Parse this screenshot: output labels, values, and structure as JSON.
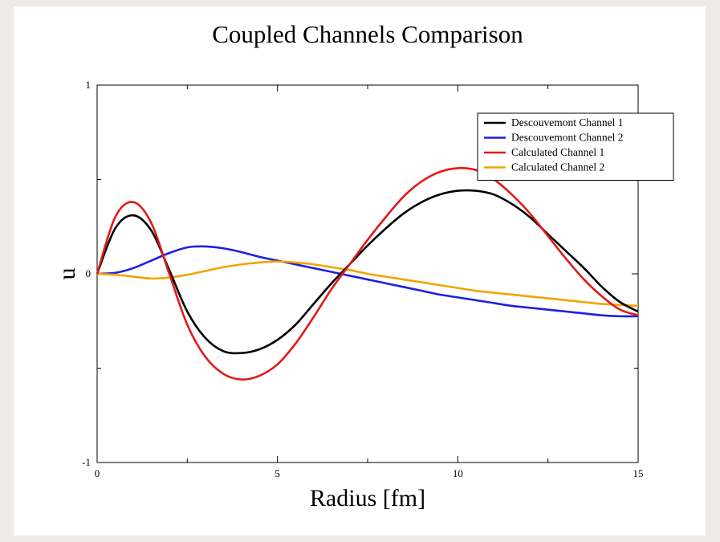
{
  "chart_data": {
    "type": "line",
    "title": "Coupled Channels Comparison",
    "xlabel": "Radius [fm]",
    "ylabel": "u",
    "xlim": [
      0,
      15
    ],
    "ylim": [
      -1,
      1
    ],
    "x_ticks": [
      "0",
      "5",
      "10",
      "15"
    ],
    "y_ticks": [
      "-1",
      "0",
      "1"
    ],
    "grid": false,
    "legend_position": "top-right",
    "series": [
      {
        "name": "Descouvemont Channel 1",
        "color": "#000000",
        "x": [
          0,
          0.5,
          1.0,
          1.5,
          2.0,
          2.5,
          3.0,
          3.5,
          4.0,
          4.5,
          5.0,
          5.5,
          6.0,
          6.5,
          7.0,
          7.5,
          8.0,
          8.5,
          9.0,
          9.5,
          10.0,
          10.5,
          11.0,
          11.5,
          12.0,
          12.5,
          13.0,
          13.5,
          14.0,
          14.5,
          15.0
        ],
        "y": [
          0,
          0.24,
          0.31,
          0.23,
          0.02,
          -0.2,
          -0.34,
          -0.41,
          -0.42,
          -0.4,
          -0.35,
          -0.27,
          -0.16,
          -0.05,
          0.05,
          0.15,
          0.24,
          0.32,
          0.38,
          0.42,
          0.44,
          0.44,
          0.42,
          0.37,
          0.3,
          0.21,
          0.12,
          0.03,
          -0.07,
          -0.15,
          -0.2
        ]
      },
      {
        "name": "Descouvemont Channel 2",
        "color": "#1f1fe0",
        "x": [
          0,
          0.5,
          1.0,
          1.5,
          2.0,
          2.5,
          3.0,
          3.5,
          4.0,
          4.5,
          5.0,
          5.5,
          6.0,
          6.5,
          7.0,
          7.5,
          8.0,
          8.5,
          9.0,
          9.5,
          10.0,
          10.5,
          11.0,
          11.5,
          12.0,
          12.5,
          13.0,
          13.5,
          14.0,
          14.5,
          15.0
        ],
        "y": [
          0,
          0.005,
          0.03,
          0.07,
          0.11,
          0.14,
          0.145,
          0.135,
          0.115,
          0.09,
          0.07,
          0.05,
          0.03,
          0.01,
          -0.01,
          -0.03,
          -0.05,
          -0.07,
          -0.09,
          -0.11,
          -0.125,
          -0.14,
          -0.155,
          -0.17,
          -0.18,
          -0.19,
          -0.2,
          -0.21,
          -0.22,
          -0.225,
          -0.225
        ]
      },
      {
        "name": "Calculated Channel 1",
        "color": "#e01a1a",
        "x": [
          0,
          0.5,
          1.0,
          1.5,
          2.0,
          2.5,
          3.0,
          3.5,
          4.0,
          4.5,
          5.0,
          5.5,
          6.0,
          6.5,
          7.0,
          7.5,
          8.0,
          8.5,
          9.0,
          9.5,
          10.0,
          10.5,
          11.0,
          11.5,
          12.0,
          12.5,
          13.0,
          13.5,
          14.0,
          14.5,
          15.0
        ],
        "y": [
          0,
          0.3,
          0.38,
          0.27,
          0.0,
          -0.27,
          -0.44,
          -0.53,
          -0.56,
          -0.54,
          -0.48,
          -0.37,
          -0.23,
          -0.08,
          0.05,
          0.18,
          0.3,
          0.41,
          0.49,
          0.54,
          0.56,
          0.55,
          0.5,
          0.42,
          0.32,
          0.2,
          0.08,
          -0.03,
          -0.12,
          -0.19,
          -0.22
        ]
      },
      {
        "name": "Calculated Channel 2",
        "color": "#f0a500",
        "x": [
          0,
          0.5,
          1.0,
          1.5,
          2.0,
          2.5,
          3.0,
          3.5,
          4.0,
          4.5,
          5.0,
          5.5,
          6.0,
          6.5,
          7.0,
          7.5,
          8.0,
          8.5,
          9.0,
          9.5,
          10.0,
          10.5,
          11.0,
          11.5,
          12.0,
          12.5,
          13.0,
          13.5,
          14.0,
          14.5,
          15.0
        ],
        "y": [
          0,
          -0.005,
          -0.015,
          -0.025,
          -0.02,
          -0.005,
          0.015,
          0.035,
          0.05,
          0.06,
          0.065,
          0.06,
          0.05,
          0.035,
          0.02,
          0.0,
          -0.015,
          -0.03,
          -0.045,
          -0.06,
          -0.075,
          -0.09,
          -0.1,
          -0.11,
          -0.12,
          -0.13,
          -0.14,
          -0.15,
          -0.16,
          -0.165,
          -0.17
        ]
      }
    ]
  }
}
